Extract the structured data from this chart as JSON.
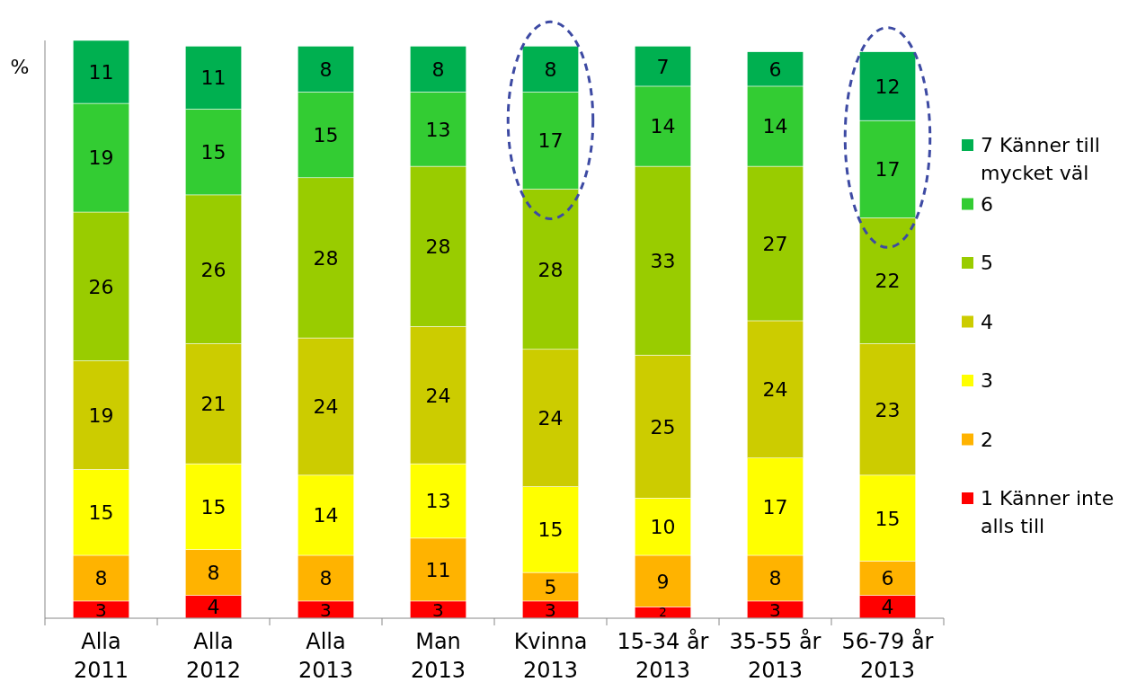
{
  "chart_data": {
    "type": "bar",
    "stacked": true,
    "ylabel": "%",
    "tick_labels": "x",
    "data_labels": true,
    "legend": "right",
    "ylim": [
      0,
      101
    ],
    "categories": [
      "Alla 2011",
      "Alla 2012",
      "Alla 2013",
      "Man 2013",
      "Kvinna 2013",
      "15-34 år 2013",
      "35-55 år 2013",
      "56-79 år 2013"
    ],
    "series": [
      {
        "name": "1 Känner inte alls till",
        "color": "#ff0000",
        "values": [
          3,
          4,
          3,
          3,
          3,
          2,
          3,
          4
        ]
      },
      {
        "name": "2",
        "color": "#ffb300",
        "values": [
          8,
          8,
          8,
          11,
          5,
          9,
          8,
          6
        ]
      },
      {
        "name": "3",
        "color": "#ffff00",
        "values": [
          15,
          15,
          14,
          13,
          15,
          10,
          17,
          15
        ]
      },
      {
        "name": "4",
        "color": "#cccc00",
        "values": [
          19,
          21,
          24,
          24,
          24,
          25,
          24,
          23
        ]
      },
      {
        "name": "5",
        "color": "#99cc00",
        "values": [
          26,
          26,
          28,
          28,
          28,
          33,
          27,
          22
        ]
      },
      {
        "name": "6",
        "color": "#33cc33",
        "values": [
          19,
          15,
          15,
          13,
          17,
          14,
          14,
          17
        ]
      },
      {
        "name": "7 Känner till mycket väl",
        "color": "#00b050",
        "values": [
          11,
          11,
          8,
          8,
          8,
          7,
          6,
          12
        ]
      }
    ]
  }
}
